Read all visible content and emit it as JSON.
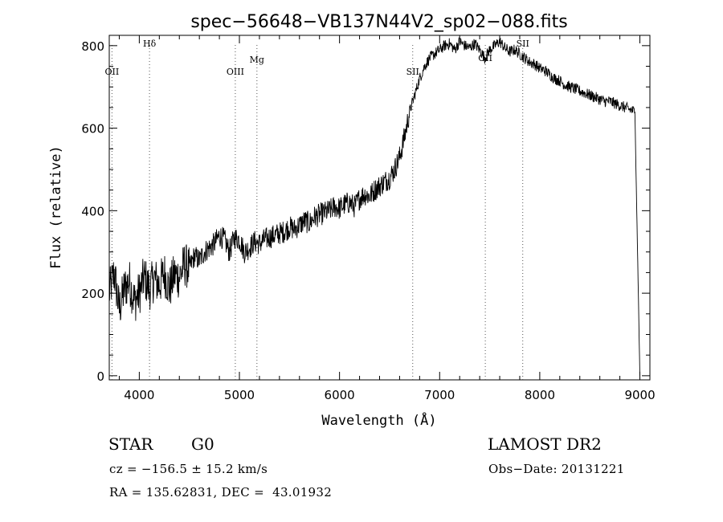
{
  "chart_data": {
    "type": "line",
    "title": "spec−56648−VB137N44V2_sp02−088.fits",
    "xlabel": "Wavelength (Å)",
    "ylabel": "Flux (relative)",
    "xlim": [
      3700,
      9100
    ],
    "ylim": [
      -10,
      825
    ],
    "x_ticks": [
      4000,
      5000,
      6000,
      7000,
      8000,
      9000
    ],
    "x_tick_labels": [
      "4000",
      "5000",
      "6000",
      "7000",
      "8000",
      "9000"
    ],
    "y_ticks": [
      0,
      200,
      400,
      600,
      800
    ],
    "y_tick_labels": [
      "0",
      "200",
      "400",
      "600",
      "800"
    ],
    "grid": false,
    "series": [
      {
        "x": [
          3700,
          3750,
          3800,
          3850,
          3900,
          3950,
          4000,
          4050,
          4100,
          4150,
          4200,
          4250,
          4300,
          4350,
          4400,
          4450,
          4500,
          4550,
          4600,
          4650,
          4700,
          4750,
          4800,
          4850,
          4900,
          4950,
          5000,
          5050,
          5100,
          5150,
          5200,
          5250,
          5300,
          5350,
          5400,
          5450,
          5500,
          5550,
          5600,
          5650,
          5700,
          5750,
          5800,
          5850,
          5900,
          5950,
          6000,
          6050,
          6100,
          6150,
          6200,
          6250,
          6300,
          6350,
          6400,
          6450,
          6500,
          6550,
          6600,
          6650,
          6700,
          6750,
          6800,
          6850,
          6900,
          6950,
          7000,
          7050,
          7100,
          7150,
          7200,
          7250,
          7300,
          7350,
          7400,
          7450,
          7500,
          7550,
          7600,
          7650,
          7700,
          7750,
          7800,
          7850,
          7900,
          7950,
          8000,
          8050,
          8100,
          8150,
          8200,
          8250,
          8300,
          8350,
          8400,
          8450,
          8500,
          8550,
          8600,
          8650,
          8700,
          8750,
          8800,
          8850,
          8900,
          8950,
          9000
        ],
        "values": [
          200,
          250,
          160,
          210,
          230,
          180,
          200,
          240,
          210,
          235,
          220,
          250,
          210,
          245,
          240,
          270,
          260,
          290,
          280,
          300,
          310,
          320,
          340,
          330,
          300,
          335,
          330,
          300,
          310,
          325,
          320,
          330,
          335,
          340,
          345,
          350,
          360,
          355,
          365,
          375,
          370,
          385,
          390,
          395,
          400,
          410,
          405,
          415,
          420,
          410,
          430,
          440,
          435,
          450,
          460,
          470,
          480,
          500,
          530,
          580,
          640,
          680,
          720,
          750,
          770,
          780,
          790,
          800,
          805,
          790,
          810,
          800,
          795,
          805,
          790,
          770,
          790,
          800,
          810,
          795,
          785,
          790,
          780,
          770,
          760,
          755,
          745,
          740,
          730,
          720,
          715,
          705,
          700,
          695,
          690,
          685,
          680,
          675,
          670,
          665,
          665,
          660,
          655,
          650,
          645,
          640,
          0
        ]
      }
    ],
    "lines": [
      {
        "label": "OII",
        "x": 3727
      },
      {
        "label": "Hδ",
        "x": 4102
      },
      {
        "label": "OIII",
        "x": 4959
      },
      {
        "label": "Mg",
        "x": 5175
      },
      {
        "label": "SII",
        "x": 6731
      },
      {
        "label": "OII",
        "x": 7456
      },
      {
        "label": "SII",
        "x": 7830
      }
    ]
  },
  "info": {
    "class": "STAR",
    "subclass": "G0",
    "cz": "cz = −156.5 ± 15.2 km/s",
    "coords": "RA = 135.62831, DEC =  43.01932",
    "survey": "LAMOST DR2",
    "obs_date": "Obs−Date: 20131221"
  }
}
